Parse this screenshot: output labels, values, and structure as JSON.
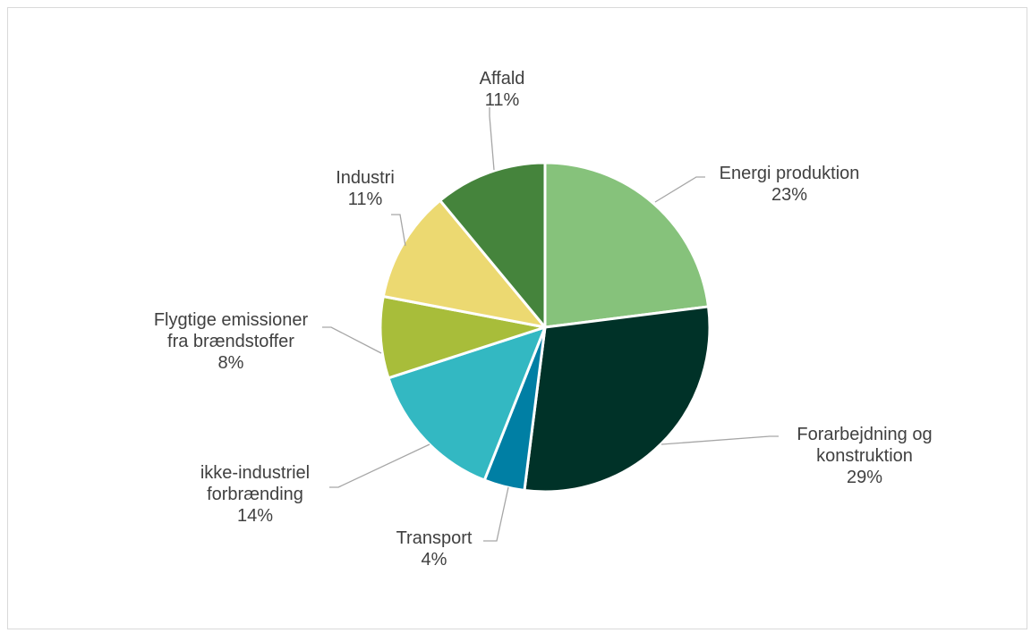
{
  "chart_data": {
    "type": "pie",
    "title": "",
    "slices": [
      {
        "label_lines": [
          "Energi produktion"
        ],
        "pct_label": "23%",
        "value": 23,
        "color": "#86c27b"
      },
      {
        "label_lines": [
          "Forarbejdning og",
          "konstruktion"
        ],
        "pct_label": "29%",
        "value": 29,
        "color": "#003228"
      },
      {
        "label_lines": [
          "Transport"
        ],
        "pct_label": "4%",
        "value": 4,
        "color": "#007fa4"
      },
      {
        "label_lines": [
          "ikke-industriel",
          "forbrænding"
        ],
        "pct_label": "14%",
        "value": 14,
        "color": "#33b8c2"
      },
      {
        "label_lines": [
          "Flygtige emissioner",
          "fra brændstoffer"
        ],
        "pct_label": "8%",
        "value": 8,
        "color": "#a8bd3a"
      },
      {
        "label_lines": [
          "Industri"
        ],
        "pct_label": "11%",
        "value": 11,
        "color": "#ecd971"
      },
      {
        "label_lines": [
          "Affald"
        ],
        "pct_label": "11%",
        "value": 11,
        "color": "#45843c"
      }
    ],
    "start_angle_deg": 0,
    "direction": "clockwise",
    "legend": "none",
    "data_labels": "outside-with-leader-lines"
  }
}
